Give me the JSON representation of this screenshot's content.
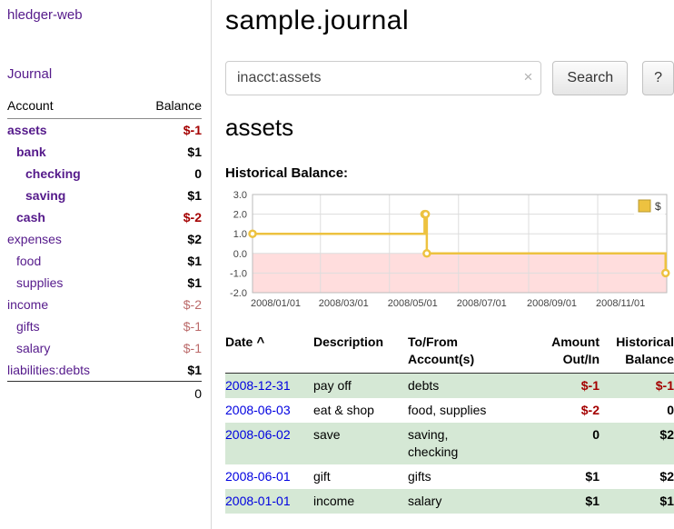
{
  "colors": {
    "link_purple": "#551a8b",
    "date_link_blue": "#0000e0",
    "negative_red": "#a40000",
    "negative_rose": "#bb6a6a",
    "row_green": "#d5e8d5",
    "chart_line": "#edc240",
    "chart_negative_fill": "#ffdddd"
  },
  "sidebar": {
    "app_title": "hledger-web",
    "journal_link": "Journal",
    "header": {
      "account": "Account",
      "balance": "Balance"
    },
    "accounts": [
      {
        "name": "assets",
        "indent": 0,
        "bold": true,
        "balance": "$-1",
        "balance_style": "red"
      },
      {
        "name": "bank",
        "indent": 1,
        "bold": true,
        "balance": "$1",
        "balance_style": "black"
      },
      {
        "name": "checking",
        "indent": 2,
        "bold": true,
        "balance": "0",
        "balance_style": "black"
      },
      {
        "name": "saving",
        "indent": 2,
        "bold": true,
        "balance": "$1",
        "balance_style": "black"
      },
      {
        "name": "cash",
        "indent": 1,
        "bold": true,
        "balance": "$-2",
        "balance_style": "red"
      },
      {
        "name": "expenses",
        "indent": 0,
        "bold": false,
        "balance": "$2",
        "balance_style": "black"
      },
      {
        "name": "food",
        "indent": 1,
        "bold": false,
        "balance": "$1",
        "balance_style": "black"
      },
      {
        "name": "supplies",
        "indent": 1,
        "bold": false,
        "balance": "$1",
        "balance_style": "black"
      },
      {
        "name": "income",
        "indent": 0,
        "bold": false,
        "balance": "$-2",
        "balance_style": "rose"
      },
      {
        "name": "gifts",
        "indent": 1,
        "bold": false,
        "balance": "$-1",
        "balance_style": "rose"
      },
      {
        "name": "salary",
        "indent": 1,
        "bold": false,
        "balance": "$-1",
        "balance_style": "rose"
      },
      {
        "name": "liabilities:debts",
        "indent": 0,
        "bold": false,
        "balance": "$1",
        "balance_style": "black"
      }
    ],
    "total": "0"
  },
  "main": {
    "title": "sample.journal",
    "search": {
      "value": "inacct:assets",
      "clear_icon": "×",
      "button_label": "Search",
      "help_label": "?"
    },
    "account_heading": "assets",
    "chart_title": "Historical Balance:"
  },
  "chart_data": {
    "type": "line",
    "step": true,
    "title": "Historical Balance",
    "legend_label": "$",
    "legend_position": "top-right",
    "grid": true,
    "line_color": "#edc240",
    "negative_fill": "#ffdddd",
    "x_range": [
      "2008-01-01",
      "2009-01-01"
    ],
    "y_range": [
      -2,
      3
    ],
    "y_ticks": [
      3.0,
      2.0,
      1.0,
      0.0,
      -1.0,
      -2.0
    ],
    "x_ticks": [
      "2008/01/01",
      "2008/03/01",
      "2008/05/01",
      "2008/07/01",
      "2008/09/01",
      "2008/11/01"
    ],
    "points": [
      {
        "date": "2008-01-01",
        "value": 1
      },
      {
        "date": "2008-06-01",
        "value": 2
      },
      {
        "date": "2008-06-02",
        "value": 2
      },
      {
        "date": "2008-06-03",
        "value": 0
      },
      {
        "date": "2008-12-31",
        "value": -1
      }
    ]
  },
  "register": {
    "headers": [
      {
        "label": "Date",
        "sort_icon": "^",
        "align": "left",
        "sortable": true
      },
      {
        "label": "Description",
        "align": "left",
        "sortable": false
      },
      {
        "label": "To/From Account(s)",
        "align": "left",
        "sortable": false
      },
      {
        "label": "Amount Out/In",
        "align": "right",
        "sortable": false
      },
      {
        "label": "Historical Balance",
        "align": "right",
        "sortable": false
      }
    ],
    "rows": [
      {
        "date": "2008-12-31",
        "description": "pay off",
        "accounts": "debts",
        "amount": "$-1",
        "amount_negative": true,
        "balance": "$-1",
        "balance_negative": true,
        "green": true
      },
      {
        "date": "2008-06-03",
        "description": "eat & shop",
        "accounts": "food, supplies",
        "amount": "$-2",
        "amount_negative": true,
        "balance": "0",
        "balance_negative": false,
        "green": false
      },
      {
        "date": "2008-06-02",
        "description": "save",
        "accounts": "saving, checking",
        "amount": "0",
        "amount_negative": false,
        "balance": "$2",
        "balance_negative": false,
        "green": true
      },
      {
        "date": "2008-06-01",
        "description": "gift",
        "accounts": "gifts",
        "amount": "$1",
        "amount_negative": false,
        "balance": "$2",
        "balance_negative": false,
        "green": false
      },
      {
        "date": "2008-01-01",
        "description": "income",
        "accounts": "salary",
        "amount": "$1",
        "amount_negative": false,
        "balance": "$1",
        "balance_negative": false,
        "green": true
      }
    ]
  }
}
